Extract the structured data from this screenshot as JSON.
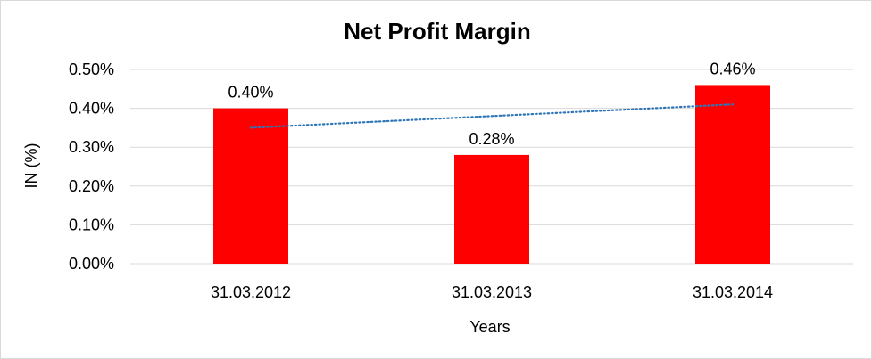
{
  "chart_data": {
    "type": "bar",
    "title": "Net Profit Margin",
    "xlabel": "Years",
    "ylabel": "IN (%)",
    "categories": [
      "31.03.2012",
      "31.03.2013",
      "31.03.2014"
    ],
    "values": [
      0.4,
      0.28,
      0.46
    ],
    "data_labels": [
      "0.40%",
      "0.28%",
      "0.46%"
    ],
    "ylim": [
      0,
      0.5
    ],
    "yticks": [
      0,
      0.1,
      0.2,
      0.3,
      0.4,
      0.5
    ],
    "ytick_labels": [
      "0.00%",
      "0.10%",
      "0.20%",
      "0.30%",
      "0.40%",
      "0.50%"
    ],
    "trendline": {
      "type": "linear",
      "style": "dotted",
      "color": "#2e75b6"
    },
    "grid": true,
    "legend": "none",
    "bar_color": "#ff0000",
    "gridline_color": "#d9d9d9"
  }
}
